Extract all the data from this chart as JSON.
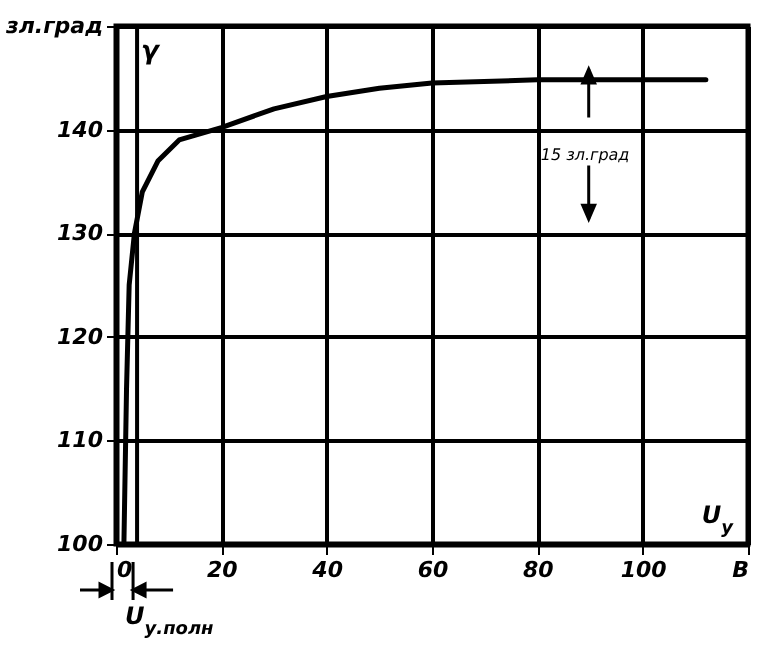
{
  "chart_data": {
    "type": "line",
    "xlabel": "U$_{у}$",
    "ylabel": "γ",
    "x": [
      1.5,
      2,
      2.5,
      3.5,
      5,
      8,
      12,
      20,
      30,
      40,
      50,
      60,
      80,
      112
    ],
    "series": [
      {
        "color": "#000000",
        "values": [
          100,
          115,
          125,
          130,
          134,
          137,
          139,
          140.2,
          142,
          143.2,
          144,
          144.5,
          144.8,
          144.8
        ]
      }
    ],
    "xlim": [
      0,
      120
    ],
    "ylim": [
      100,
      150
    ],
    "xticks": [
      0,
      20,
      40,
      60,
      80,
      100,
      {
        "value": 120,
        "label": "В"
      }
    ],
    "yticks": [
      100,
      110,
      120,
      130,
      140,
      {
        "value": 150,
        "label": "зл.град"
      }
    ],
    "grid": true,
    "line_style": "solid",
    "ref_lines": [
      {
        "axis": "x",
        "value": 4,
        "label": "U$_{у.полн}$"
      }
    ],
    "annotations": [
      "15 зл.град"
    ]
  }
}
